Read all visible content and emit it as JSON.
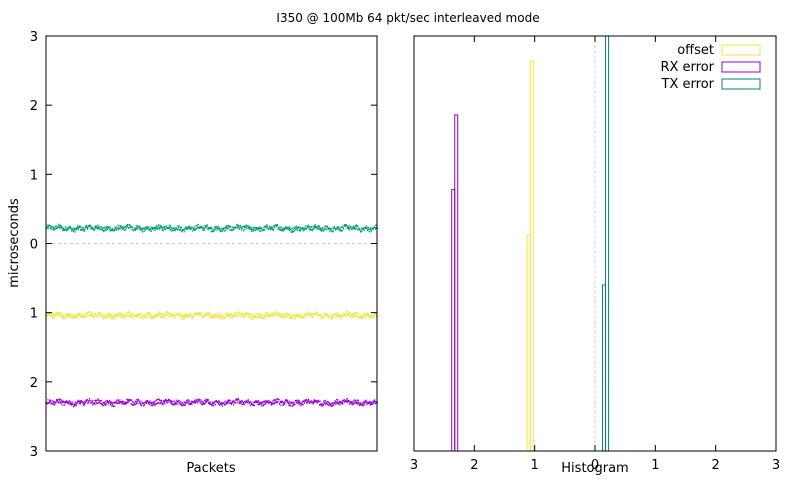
{
  "title": "I350 @ 100Mb 64 pkt/sec interleaved mode",
  "colors": {
    "tx": "#009e73",
    "offset": "#f0e442",
    "rx": "#9400d3",
    "tx_hist": "#008080",
    "grid": "#c8c8c8",
    "zero_line": "#a0c8ff"
  },
  "chart_data": [
    {
      "type": "scatter",
      "xlabel": "Packets",
      "ylabel": "microseconds",
      "ylim": [
        -3,
        3
      ],
      "y_ticks": [
        {
          "value": 3,
          "label": "3"
        },
        {
          "value": 2,
          "label": "2"
        },
        {
          "value": 1,
          "label": "1"
        },
        {
          "value": 0,
          "label": "0"
        },
        {
          "value": -1,
          "label": "1"
        },
        {
          "value": -2,
          "label": "2"
        },
        {
          "value": -3,
          "label": "3"
        }
      ],
      "grid": "y-zero-dashed",
      "series": [
        {
          "key": "tx",
          "color": "#009e73",
          "mean": 0.22,
          "jitter": 0.04,
          "points": 1000
        },
        {
          "key": "offset",
          "color": "#f0e442",
          "mean": -1.04,
          "jitter": 0.04,
          "points": 1000
        },
        {
          "key": "rx",
          "color": "#9400d3",
          "mean": -2.3,
          "jitter": 0.04,
          "points": 1000
        }
      ]
    },
    {
      "type": "bar",
      "xlabel": "Histogram",
      "xlim": [
        -3,
        3
      ],
      "x_ticks": [
        {
          "value": -3,
          "label": "3"
        },
        {
          "value": -2,
          "label": "2"
        },
        {
          "value": -1,
          "label": "1"
        },
        {
          "value": 0,
          "label": "0"
        },
        {
          "value": 1,
          "label": "1"
        },
        {
          "value": 2,
          "label": "2"
        },
        {
          "value": 3,
          "label": "3"
        }
      ],
      "ylim": [
        0,
        1
      ],
      "legend_position": "top-right",
      "series": [
        {
          "name": "offset",
          "color": "#f0e442",
          "bins": [
            {
              "x0": -1.125,
              "x1": -1.075,
              "h": 0.52
            },
            {
              "x0": -1.075,
              "x1": -1.025,
              "h": 0.94
            }
          ]
        },
        {
          "name": "RX error",
          "color": "#9400d3",
          "bins": [
            {
              "x0": -2.375,
              "x1": -2.325,
              "h": 0.63
            },
            {
              "x0": -2.325,
              "x1": -2.275,
              "h": 0.81
            }
          ]
        },
        {
          "name": "TX error",
          "color": "#008080",
          "bins": [
            {
              "x0": 0.125,
              "x1": 0.175,
              "h": 0.4
            },
            {
              "x0": 0.175,
              "x1": 0.225,
              "h": 1.0
            }
          ]
        }
      ]
    }
  ]
}
